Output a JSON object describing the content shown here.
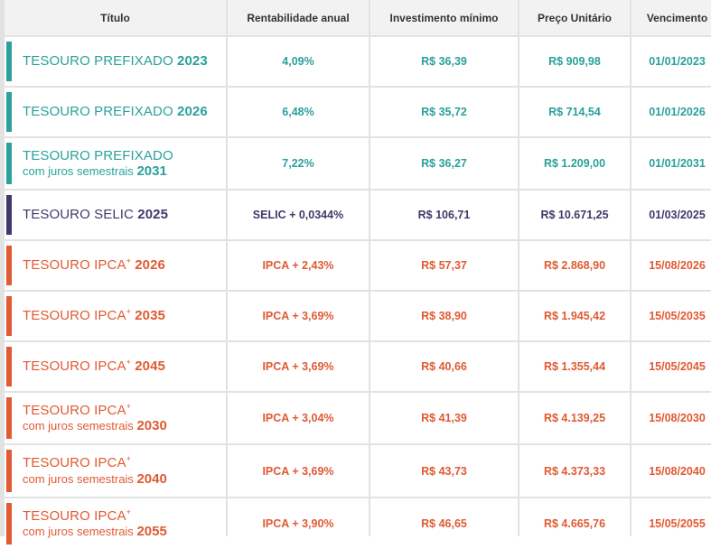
{
  "headers": {
    "titulo": "Título",
    "rentabilidade": "Rentabilidade anual",
    "investimento": "Investimento mínimo",
    "preco": "Preço Unitário",
    "vencimento": "Vencimento"
  },
  "colors": {
    "teal": "#2aa19b",
    "purple": "#3f3a6b",
    "orange": "#e05a33"
  },
  "rows": [
    {
      "name": "TESOURO PREFIXADO",
      "plus": "",
      "sub": "",
      "year": "2023",
      "rate": "4,09%",
      "min": "R$ 36,39",
      "price": "R$ 909,98",
      "maturity": "01/01/2023",
      "color": "teal"
    },
    {
      "name": "TESOURO PREFIXADO",
      "plus": "",
      "sub": "",
      "year": "2026",
      "rate": "6,48%",
      "min": "R$ 35,72",
      "price": "R$ 714,54",
      "maturity": "01/01/2026",
      "color": "teal"
    },
    {
      "name": "TESOURO PREFIXADO",
      "plus": "",
      "sub": "com juros semestrais",
      "year": "2031",
      "rate": "7,22%",
      "min": "R$ 36,27",
      "price": "R$ 1.209,00",
      "maturity": "01/01/2031",
      "color": "teal"
    },
    {
      "name": "TESOURO SELIC",
      "plus": "",
      "sub": "",
      "year": "2025",
      "rate": "SELIC + 0,0344%",
      "min": "R$ 106,71",
      "price": "R$ 10.671,25",
      "maturity": "01/03/2025",
      "color": "purple"
    },
    {
      "name": "TESOURO IPCA",
      "plus": "+",
      "sub": "",
      "year": "2026",
      "rate": "IPCA + 2,43%",
      "min": "R$ 57,37",
      "price": "R$ 2.868,90",
      "maturity": "15/08/2026",
      "color": "orange"
    },
    {
      "name": "TESOURO IPCA",
      "plus": "+",
      "sub": "",
      "year": "2035",
      "rate": "IPCA + 3,69%",
      "min": "R$ 38,90",
      "price": "R$ 1.945,42",
      "maturity": "15/05/2035",
      "color": "orange"
    },
    {
      "name": "TESOURO IPCA",
      "plus": "+",
      "sub": "",
      "year": "2045",
      "rate": "IPCA + 3,69%",
      "min": "R$ 40,66",
      "price": "R$ 1.355,44",
      "maturity": "15/05/2045",
      "color": "orange"
    },
    {
      "name": "TESOURO IPCA",
      "plus": "+",
      "sub": "com juros semestrais",
      "year": "2030",
      "rate": "IPCA + 3,04%",
      "min": "R$ 41,39",
      "price": "R$ 4.139,25",
      "maturity": "15/08/2030",
      "color": "orange"
    },
    {
      "name": "TESOURO IPCA",
      "plus": "+",
      "sub": "com juros semestrais",
      "year": "2040",
      "rate": "IPCA + 3,69%",
      "min": "R$ 43,73",
      "price": "R$ 4.373,33",
      "maturity": "15/08/2040",
      "color": "orange"
    },
    {
      "name": "TESOURO IPCA",
      "plus": "+",
      "sub": "com juros semestrais",
      "year": "2055",
      "rate": "IPCA + 3,90%",
      "min": "R$ 46,65",
      "price": "R$ 4.665,76",
      "maturity": "15/05/2055",
      "color": "orange"
    }
  ]
}
